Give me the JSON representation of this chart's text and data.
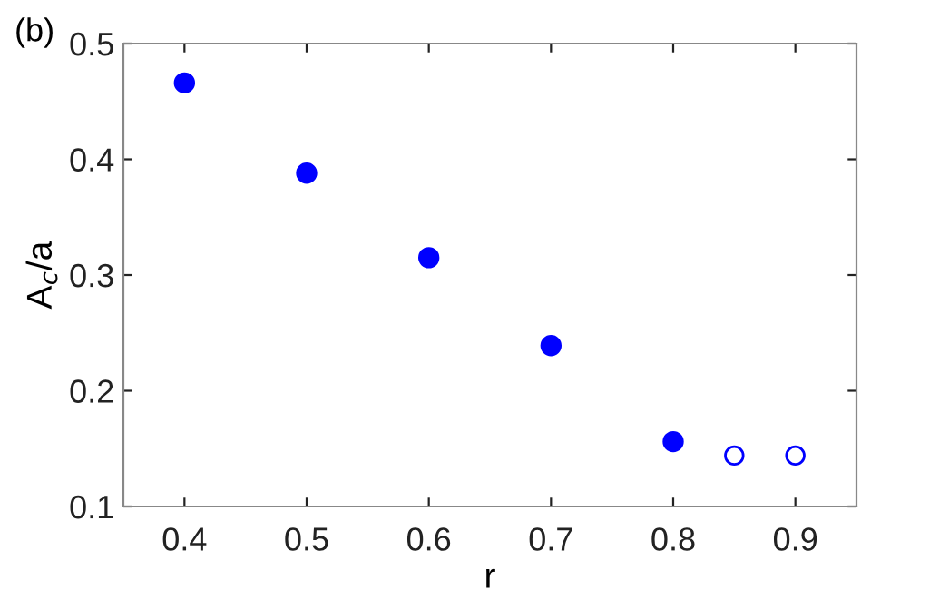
{
  "chart_data": {
    "type": "scatter",
    "xlabel": "r",
    "ylabel": "A$_{c}$/a",
    "annotations": [
      "(b)"
    ],
    "xlim": [
      0.35,
      0.95
    ],
    "xticks": [
      0.4,
      0.5,
      0.6,
      0.7,
      0.8,
      0.9
    ],
    "ylim": [
      0.1,
      0.5
    ],
    "yticks": [
      0.1,
      0.2,
      0.3,
      0.4,
      0.5
    ],
    "grid": false,
    "legend": false,
    "marker": "circle",
    "series": [
      {
        "color": "#0000ff",
        "x": [
          0.4,
          0.5,
          0.6,
          0.7,
          0.8
        ],
        "values": [
          0.466,
          0.388,
          0.315,
          0.239,
          0.156
        ]
      },
      {
        "color": "#0000ff",
        "x": [
          0.85,
          0.9
        ],
        "values": [
          0.144,
          0.144
        ]
      }
    ]
  }
}
